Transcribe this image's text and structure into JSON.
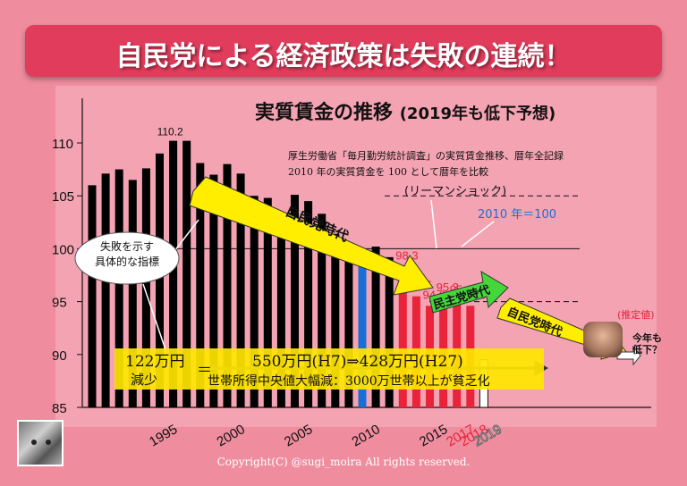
{
  "banner": {
    "title": "自民党による経済政策は失敗の連続！"
  },
  "colors": {
    "background": "#ef8d9f",
    "banner": "#e13c5c",
    "bar_black": "#000000",
    "bar_blue": "#1a6fd6",
    "bar_red": "#e8233a",
    "arrow_yellow": "#ffee00",
    "arrow_green": "#44d63a"
  },
  "chart_title": {
    "main": "実質賃金の推移",
    "sub": "(2019年も低下予想)"
  },
  "notes": {
    "line1": "厚生労働省「毎月勤労統計調査」の実質賃金推移、暦年全記録",
    "line2": "2010 年の実質賃金を 100 として暦年を比較"
  },
  "callout": {
    "line1": "失敗を示す",
    "line2": "具体的な指標"
  },
  "labels": {
    "lehman": "(リーマンショック)",
    "base": "2010 年＝100",
    "estimated": "(推定値)",
    "this_year_line1": "今年も",
    "this_year_line2": "低下？"
  },
  "eras": {
    "ldp1": "自民党時代",
    "dpj": "民主党時代",
    "ldp2": "自民党時代"
  },
  "summary": {
    "amount": "122万円",
    "decrease": "減少",
    "eq": "＝",
    "income": "550万円(H7)⇒428万円(H27)",
    "detail": "世帯所得中央値大幅減：3000万世帯以上が貧乏化"
  },
  "copyright": "Copyright(C) @sugi_moira All rights reserved.",
  "chart_data": {
    "type": "bar",
    "title": "実質賃金の推移",
    "ylim": [
      85,
      112
    ],
    "yticks": [
      85,
      90,
      95,
      100,
      105,
      110
    ],
    "xticks": [
      "1995",
      "2000",
      "2005",
      "2010",
      "2015",
      "2017",
      "2018",
      "2019"
    ],
    "years": [
      1990,
      1991,
      1992,
      1993,
      1994,
      1995,
      1996,
      1997,
      1998,
      1999,
      2000,
      2001,
      2002,
      2003,
      2004,
      2005,
      2006,
      2007,
      2008,
      2009,
      2010,
      2011,
      2012,
      2013,
      2014,
      2015,
      2016,
      2017,
      2018,
      2019
    ],
    "values": [
      106.0,
      107.1,
      107.5,
      106.5,
      107.6,
      109.0,
      110.2,
      110.2,
      108.1,
      107.0,
      108.0,
      107.1,
      105.0,
      104.8,
      102.1,
      105.1,
      104.5,
      103.3,
      101.4,
      98.8,
      100.0,
      100.2,
      99.2,
      98.3,
      95.5,
      94.6,
      95.3,
      95.1,
      94.6,
      89.5
    ],
    "value_labels": {
      "1996": "110.2",
      "2013": "98.3",
      "2014": "95.5",
      "2015": "94.6",
      "2016": "95.3",
      "2017": "95.1",
      "2018": "94.6"
    },
    "bar_groups": {
      "2010": "blue",
      "2013": "red",
      "2014": "red",
      "2015": "red",
      "2016": "red",
      "2017": "red",
      "2018": "red",
      "2019": "outline"
    },
    "reference_lines": [
      100,
      105,
      95
    ]
  }
}
